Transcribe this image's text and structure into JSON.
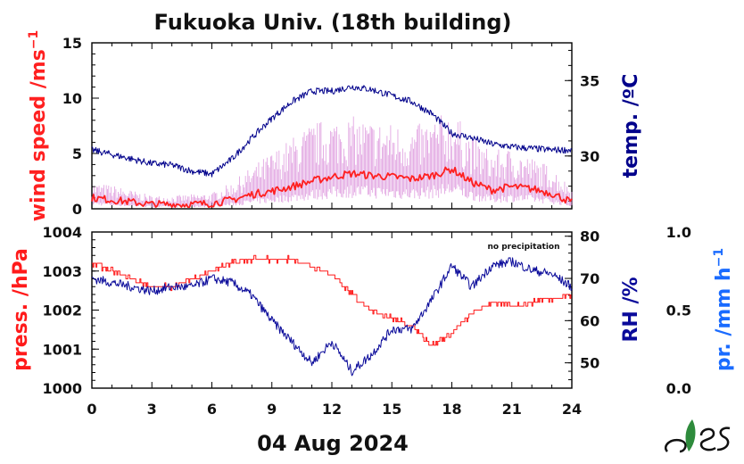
{
  "title": "Fukuoka Univ. (18th building)",
  "date_label": "04 Aug 2024",
  "no_precip_label": "no precipitation",
  "colors": {
    "wind": "#ff2020",
    "wind_gust": "#d98ad9",
    "temp": "#00008b",
    "press": "#ff1a1a",
    "rh": "#0a0a9a",
    "precip_axis": "#1a6bff",
    "logo_green": "#2e8b3c"
  },
  "chart_data": [
    {
      "type": "line",
      "panel": "top",
      "x_ticks": [
        "0",
        "3",
        "6",
        "9",
        "12",
        "15",
        "18",
        "21",
        "24"
      ],
      "xlim": [
        0,
        24
      ],
      "left_axis": {
        "label": "wind speed /ms",
        "label_sup": "−1",
        "ylim": [
          0,
          15
        ],
        "ticks": [
          "0",
          "5",
          "10",
          "15"
        ]
      },
      "right_axis": {
        "label": "temp. /ºC",
        "ylim": [
          26.5,
          37.5
        ],
        "ticks": [
          "30",
          "35"
        ]
      },
      "series": [
        {
          "axis": "left",
          "kind": "wind_mean",
          "x": [
            0,
            1,
            2,
            3,
            4,
            5,
            6,
            7,
            8,
            9,
            10,
            11,
            12,
            13,
            14,
            15,
            16,
            17,
            18,
            19,
            20,
            21,
            22,
            23,
            24
          ],
          "y": [
            1.0,
            0.8,
            0.6,
            0.4,
            0.4,
            0.4,
            0.5,
            0.8,
            1.3,
            1.6,
            2.0,
            2.5,
            2.9,
            3.2,
            3.0,
            2.9,
            2.7,
            3.0,
            3.6,
            2.4,
            1.7,
            2.0,
            1.8,
            1.4,
            0.6
          ]
        },
        {
          "axis": "left",
          "kind": "wind_gust",
          "x": [
            0,
            1,
            2,
            3,
            4,
            5,
            6,
            7,
            8,
            9,
            10,
            11,
            12,
            13,
            14,
            15,
            16,
            17,
            18,
            19,
            20,
            21,
            22,
            23,
            24
          ],
          "y": [
            2.0,
            1.8,
            1.4,
            1.0,
            1.0,
            1.1,
            1.2,
            2.0,
            3.2,
            4.3,
            5.4,
            6.5,
            6.9,
            7.0,
            6.7,
            6.5,
            6.2,
            6.8,
            7.5,
            5.5,
            4.4,
            4.6,
            3.9,
            3.2,
            1.6
          ]
        },
        {
          "axis": "right",
          "kind": "temperature",
          "x": [
            0,
            1,
            2,
            3,
            4,
            5,
            6,
            7,
            8,
            9,
            10,
            11,
            12,
            13,
            14,
            15,
            16,
            17,
            18,
            19,
            20,
            21,
            22,
            23,
            24
          ],
          "y": [
            30.4,
            30.1,
            29.8,
            29.5,
            29.4,
            29.0,
            28.8,
            29.8,
            31.2,
            32.5,
            33.6,
            34.3,
            34.3,
            34.6,
            34.4,
            34.0,
            33.6,
            32.8,
            31.5,
            31.2,
            30.8,
            30.6,
            30.5,
            30.4,
            30.4
          ]
        }
      ]
    },
    {
      "type": "line",
      "panel": "bottom",
      "x_ticks": [
        "0",
        "3",
        "6",
        "9",
        "12",
        "15",
        "18",
        "21",
        "24"
      ],
      "xlim": [
        0,
        24
      ],
      "left_axis": {
        "label": "press. /hPa",
        "ylim": [
          1000,
          1004
        ],
        "ticks": [
          "1000",
          "1001",
          "1002",
          "1003",
          "1004"
        ]
      },
      "right_axis": {
        "label": "RH /%",
        "ylim": [
          44,
          81
        ],
        "ticks": [
          "50",
          "60",
          "70",
          "80"
        ]
      },
      "third_axis": {
        "label": "pr. /mm h",
        "label_sup": "−1",
        "ylim": [
          0,
          1
        ],
        "ticks": [
          "0.0",
          "0.5",
          "1.0"
        ]
      },
      "series": [
        {
          "axis": "left",
          "kind": "pressure",
          "x": [
            0,
            1,
            2,
            3,
            4,
            5,
            6,
            7,
            8,
            9,
            10,
            11,
            12,
            13,
            14,
            15,
            16,
            17,
            18,
            19,
            20,
            21,
            22,
            23,
            24
          ],
          "y": [
            1003.2,
            1003.0,
            1002.8,
            1002.6,
            1002.6,
            1002.8,
            1003.0,
            1003.2,
            1003.3,
            1003.3,
            1003.3,
            1003.1,
            1002.9,
            1002.4,
            1002.0,
            1001.8,
            1001.6,
            1001.1,
            1001.4,
            1001.9,
            1002.2,
            1002.1,
            1002.2,
            1002.3,
            1002.4
          ]
        },
        {
          "axis": "right",
          "kind": "relative_humidity",
          "x": [
            0,
            1,
            2,
            3,
            4,
            5,
            6,
            7,
            8,
            9,
            10,
            11,
            12,
            13,
            14,
            15,
            16,
            17,
            18,
            19,
            20,
            21,
            22,
            23,
            24
          ],
          "y": [
            70,
            69,
            68,
            67,
            68,
            68,
            70,
            69,
            66,
            60,
            55,
            50,
            55,
            48,
            52,
            58,
            58,
            65,
            73,
            68,
            73,
            74,
            72,
            71,
            68
          ]
        },
        {
          "axis": "third",
          "kind": "precipitation",
          "x": [
            0,
            24
          ],
          "y": [
            0,
            0
          ]
        }
      ]
    }
  ]
}
